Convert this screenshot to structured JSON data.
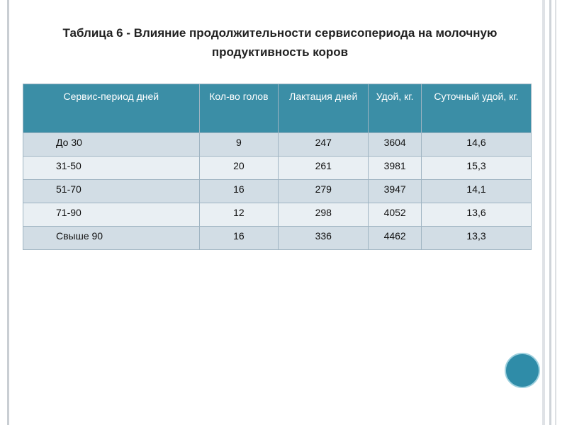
{
  "header": {
    "title": "Таблица 6 - Влияние продолжительности сервисопериода на молочную продуктивность коров"
  },
  "table": {
    "columns": [
      "Сервис-период дней",
      "Кол-во голов",
      "Лактация дней",
      "Удой, кг.",
      "Суточный удой, кг."
    ],
    "rows": [
      [
        "До 30",
        "9",
        "247",
        "3604",
        "14,6"
      ],
      [
        "31-50",
        "20",
        "261",
        "3981",
        "15,3"
      ],
      [
        "51-70",
        "16",
        "279",
        "3947",
        "14,1"
      ],
      [
        "71-90",
        "12",
        "298",
        "4052",
        "13,6"
      ],
      [
        "Свыше 90",
        "16",
        "336",
        "4462",
        "13,3"
      ]
    ]
  }
}
